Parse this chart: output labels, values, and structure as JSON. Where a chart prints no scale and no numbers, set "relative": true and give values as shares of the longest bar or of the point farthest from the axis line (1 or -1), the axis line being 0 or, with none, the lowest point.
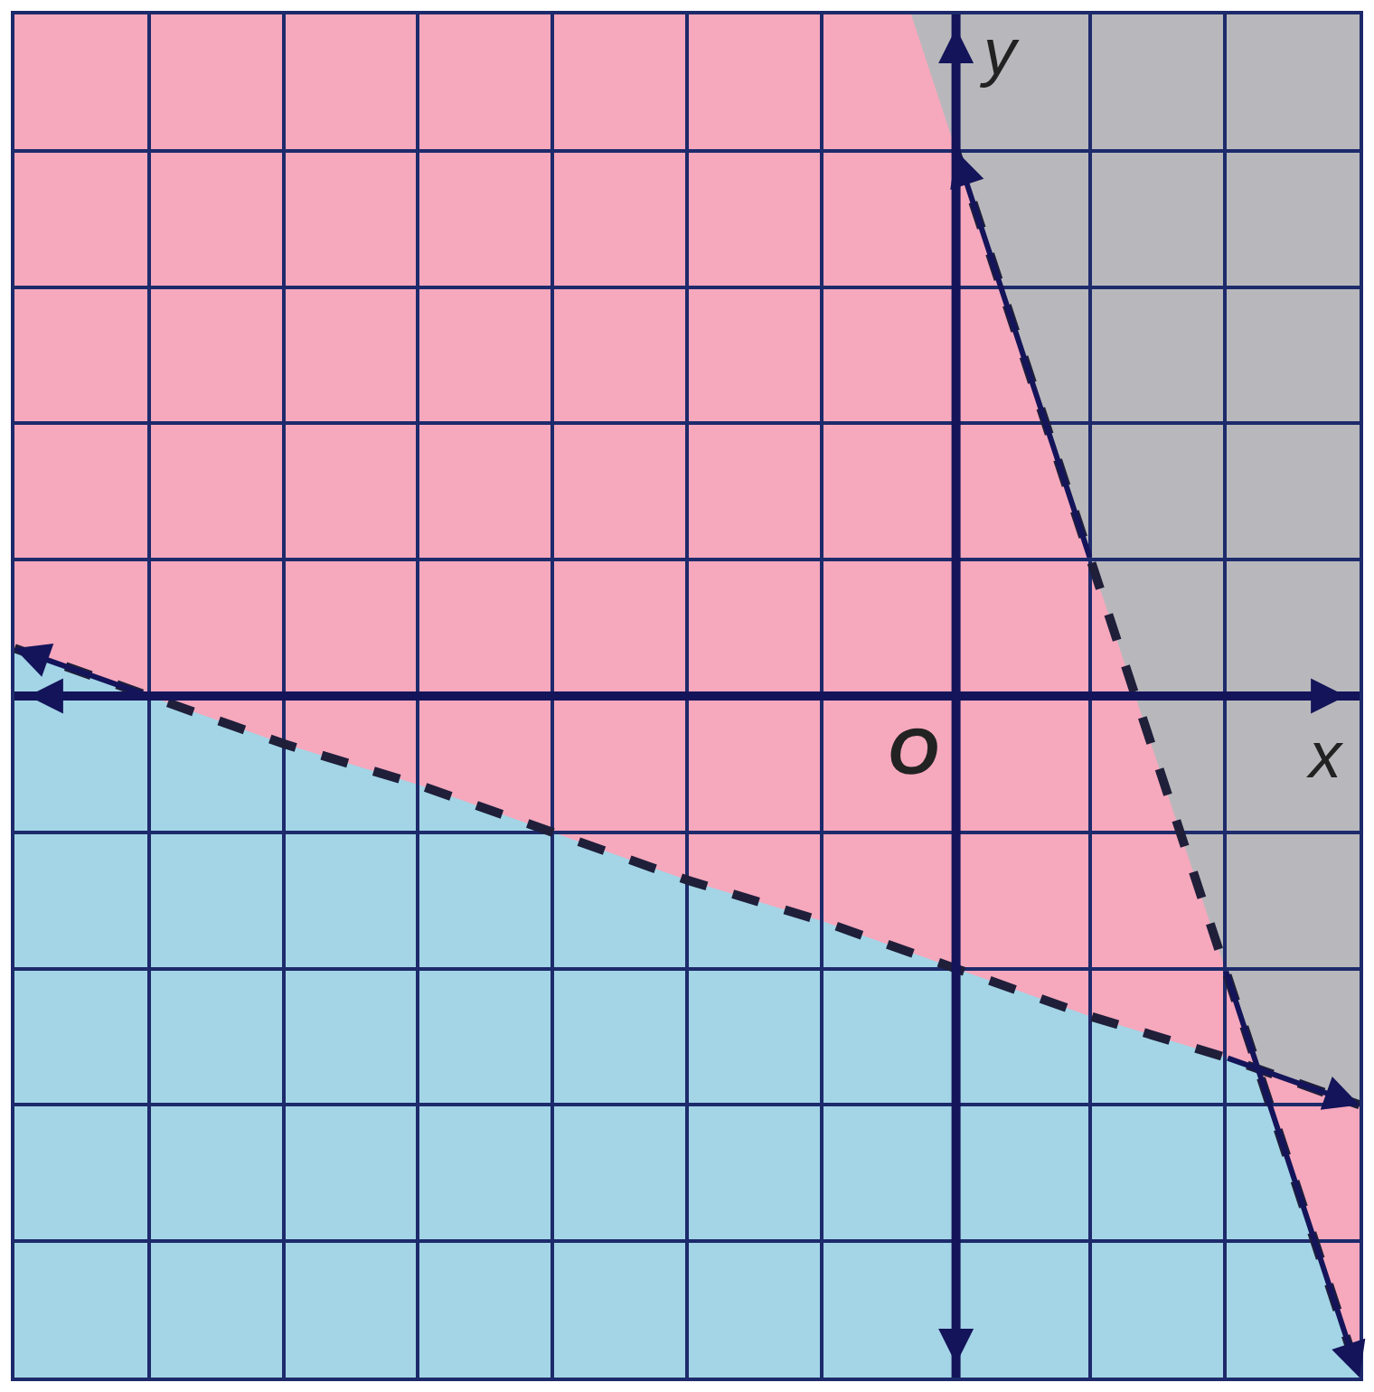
{
  "chart_data": {
    "type": "line",
    "relative": true,
    "xlabel": "x",
    "ylabel": "y",
    "categories": [
      null,
      null,
      null,
      null,
      null,
      null,
      null,
      null,
      null,
      null,
      null
    ],
    "grid": true,
    "marker": "none",
    "series": [
      {
        "color": "#1f1f3a",
        "line_style": "dashed",
        "values": [
          0.07,
          0,
          -0.07,
          -0.13,
          -0.2,
          -0.27,
          -0.33,
          -0.4,
          -0.47,
          -0.53,
          -0.6
        ]
      },
      {
        "color": "#1f1f3a",
        "line_style": "dashed",
        "values": [
          null,
          null,
          null,
          null,
          null,
          null,
          null,
          0.8,
          0.2,
          -0.4,
          -1
        ]
      }
    ],
    "annotations": [
      "O"
    ]
  }
}
